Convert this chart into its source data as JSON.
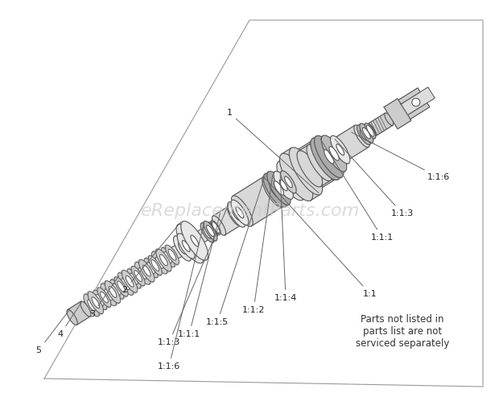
{
  "bg_color": "#ffffff",
  "watermark": "eReplacementParts.com",
  "watermark_color": "#cccccc",
  "watermark_fontsize": 16,
  "note_text": "Parts not listed in\nparts list are not\nserviced separately",
  "note_fontsize": 8.5,
  "part_fill": "#e8e8e8",
  "part_edge": "#555555",
  "line_color": "#777777",
  "label_color": "#222222",
  "label_fontsize": 8,
  "border_color": "#999999"
}
